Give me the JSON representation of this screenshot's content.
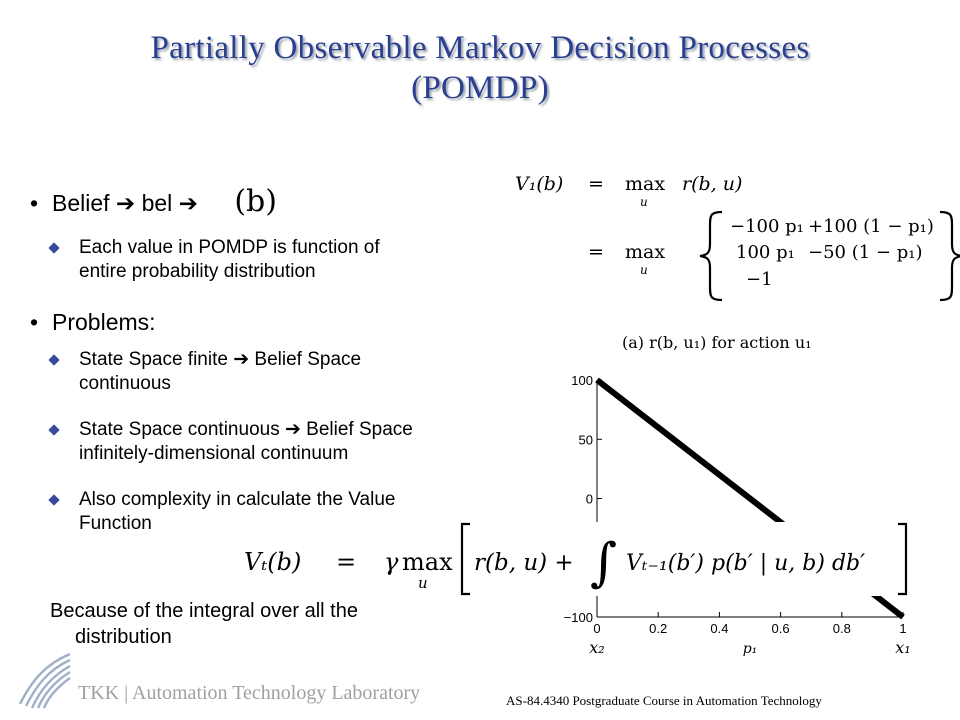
{
  "title": {
    "line1": "Partially Observable Markov Decision Processes",
    "line2": "(POMDP)"
  },
  "bullets": [
    {
      "text": "Belief ➔ bel ➔",
      "math": "(b)"
    },
    {
      "text": "Problems:"
    }
  ],
  "subbullets": [
    {
      "line1": "Each value in POMDP is function of",
      "line2": "entire probability distribution"
    },
    {
      "line1": "State Space finite ➔ Belief Space",
      "line2": "continuous"
    },
    {
      "line1": "State Space continuous ➔ Belief Space",
      "line2": "infinitely-dimensional continuum"
    },
    {
      "line1": "Also complexity in calculate the Value",
      "line2": "Function"
    }
  ],
  "paragraph": {
    "line1": "Because of the integral over all the",
    "line2": "distribution"
  },
  "equations": {
    "v1_lhs": "V₁(b)",
    "eq": "=",
    "max": "max",
    "max_sub": "u",
    "r": "r(b, u)",
    "rows": [
      [
        "−100 p₁",
        "+100 (1 − p₁)"
      ],
      [
        "100 p₁",
        "−50 (1 − p₁)"
      ],
      [
        "−1",
        ""
      ]
    ],
    "vt_lhs": "Vₜ(b)",
    "vt_gamma": "γ",
    "vt_body_a": "r(b, u) +",
    "vt_integral": "∫",
    "vt_body_b": "Vₜ₋₁(b′) p(b′ | u, b) db′"
  },
  "chart_data": {
    "type": "line",
    "title": "(a)   r(b, u₁) for action u₁",
    "xlabel": "p₁",
    "x_end_labels": [
      "x₂",
      "x₁"
    ],
    "x_ticks": [
      "0",
      "0.2",
      "0.4",
      "0.6",
      "0.8",
      "1"
    ],
    "y_ticks": [
      "100",
      "50",
      "0",
      "−100"
    ],
    "xlim": [
      0,
      1
    ],
    "ylim": [
      -100,
      100
    ],
    "series": [
      {
        "x": [
          0,
          1
        ],
        "y": [
          100,
          -100
        ]
      }
    ]
  },
  "footer": {
    "left": "TKK | Automation Technology Laboratory",
    "right": "AS-84.4340 Postgraduate Course in Automation Technology"
  },
  "colors": {
    "title": "#2a3f8f",
    "footer_left": "#a0a0a0",
    "bullet_diamond": "#3a4a9a"
  }
}
